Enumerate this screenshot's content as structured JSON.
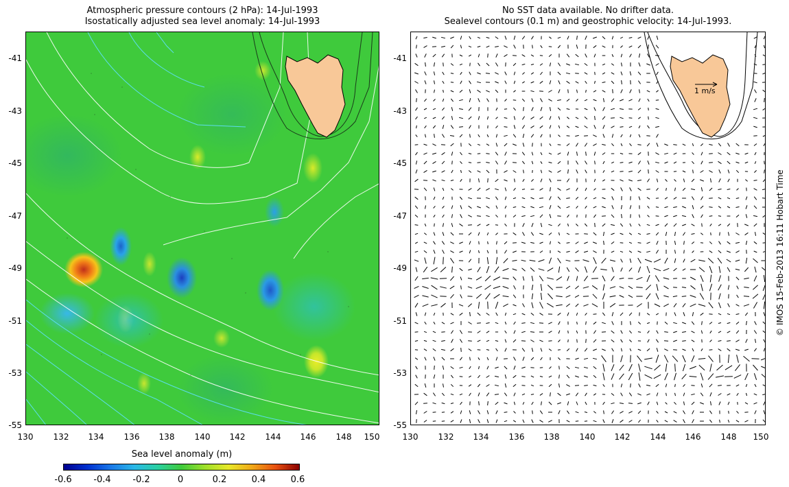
{
  "left_title": {
    "line1": "Atmospheric pressure contours (2 hPa): 14-Jul-1993",
    "line2": "Isostatically adjusted sea level anomaly: 14-Jul-1993"
  },
  "right_title": {
    "line1": "No SST data available.  No drifter data.",
    "line2": "Sealevel contours (0.1 m) and geostrophic velocity: 14-Jul-1993."
  },
  "y_ticks": [
    "-41",
    "-43",
    "-45",
    "-47",
    "-49",
    "-51",
    "-53",
    "-55"
  ],
  "x_ticks": [
    "130",
    "132",
    "134",
    "136",
    "138",
    "140",
    "142",
    "144",
    "146",
    "148",
    "150"
  ],
  "colorbar": {
    "title": "Sea level anomaly (m)",
    "labels": [
      "-0.6",
      "-0.4",
      "-0.2",
      "0",
      "0.2",
      "0.4",
      "0.6"
    ]
  },
  "velocity_scale": "1 m/s",
  "credit": "© IMOS 15-Feb-2013 16:11 Hobart Time",
  "colors": {
    "land": "#f8c898",
    "anomaly_zero": "#3fca3c"
  }
}
